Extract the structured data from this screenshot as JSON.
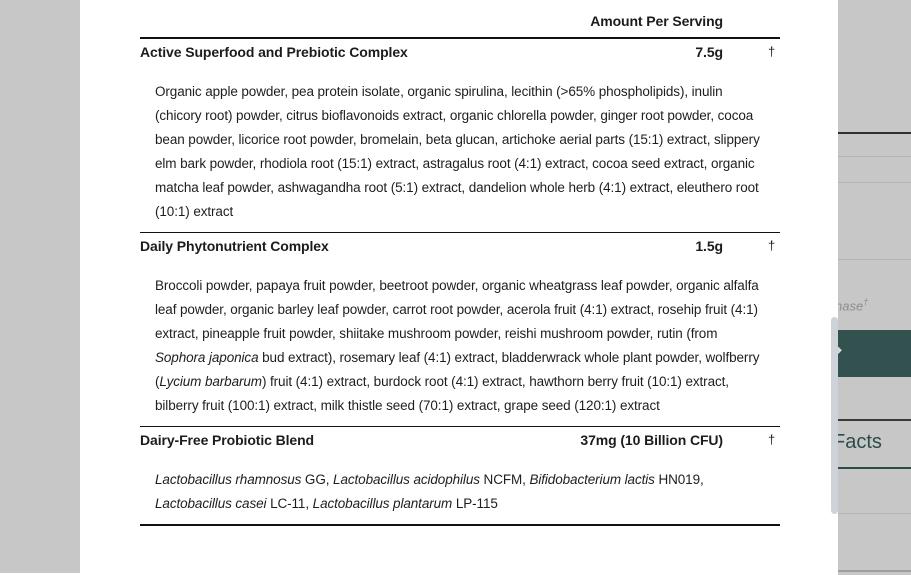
{
  "modal": {
    "table": {
      "header": {
        "amount_col": "Amount Per Serving"
      },
      "footnote_symbol": "†",
      "rows": [
        {
          "name": "Active Superfood and Prebiotic Complex",
          "amount": "7.5g",
          "dv": "†",
          "ingredients": [
            {
              "t": "Organic apple powder, pea protein isolate, organic spirulina, lecithin (>65% phospholipids), inulin (chicory root) powder, citrus bioflavonoids extract, organic chlorella powder, ginger root powder, cocoa bean powder, licorice root powder, bromelain, beta glucan, artichoke aerial parts (15:1) extract, slippery elm bark powder, rhodiola root (15:1) extract, astragalus root (4:1) extract, cocoa seed extract, organic matcha leaf powder, ashwagandha root (5:1) extract, dandelion whole herb (4:1) extract, eleuthero root (10:1) extract"
            }
          ]
        },
        {
          "name": "Daily Phytonutrient Complex",
          "amount": "1.5g",
          "dv": "†",
          "ingredients": [
            {
              "t": "Broccoli powder, papaya fruit powder, beetroot powder, organic wheatgrass leaf powder, organic alfalfa leaf powder, organic barley leaf powder, carrot root powder, acerola fruit (4:1) extract, rosehip fruit (4:1) extract, pineapple fruit powder, shiitake mushroom powder, reishi mushroom powder, rutin (from "
            },
            {
              "t": "Sophora japonica",
              "i": true
            },
            {
              "t": " bud extract), rosemary leaf (4:1) extract, bladderwrack whole plant powder, wolfberry ("
            },
            {
              "t": "Lycium barbarum",
              "i": true
            },
            {
              "t": ") fruit (4:1) extract, burdock root (4:1) extract, hawthorn berry fruit (10:1) extract, bilberry fruit (100:1) extract, milk thistle seed (70:1) extract, grape seed (120:1) extract"
            }
          ]
        },
        {
          "name": "Dairy-Free Probiotic Blend",
          "amount": "37mg (10 Billion CFU)",
          "dv": "†",
          "ingredients": [
            {
              "t": "Lactobacillus rhamnosus",
              "i": true
            },
            {
              "t": " GG, "
            },
            {
              "t": "Lactobacillus acidophilus",
              "i": true
            },
            {
              "t": " NCFM, "
            },
            {
              "t": "Bifidobacterium lactis",
              "i": true
            },
            {
              "t": " HN019, "
            },
            {
              "t": "Lactobacillus casei",
              "i": true
            },
            {
              "t": " LC-11, "
            },
            {
              "t": "Lactobacillus plantarum",
              "i": true
            },
            {
              "t": " LP-115"
            }
          ]
        }
      ]
    }
  },
  "background": {
    "purchase_fragment": "hase",
    "purchase_dagger": "†",
    "facts_heading_fragment": "Facts",
    "cta_arrow_icon": "➔",
    "colors": {
      "backdrop_dim": "#c7c7c7",
      "cta_teal": "#33514f",
      "accent_teal": "#2d4b48",
      "rule_black": "#111111",
      "scrollbar_thumb": "#cdd3d9"
    }
  }
}
